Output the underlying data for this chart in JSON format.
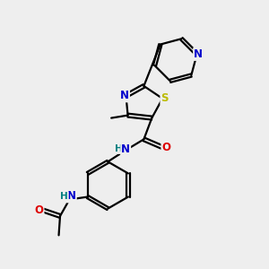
{
  "bg_color": "#eeeeee",
  "bond_color": "#000000",
  "bond_width": 1.6,
  "atom_colors": {
    "N": "#0000cc",
    "O": "#dd0000",
    "S": "#bbbb00",
    "H": "#008080"
  },
  "font_size_atom": 8.5
}
